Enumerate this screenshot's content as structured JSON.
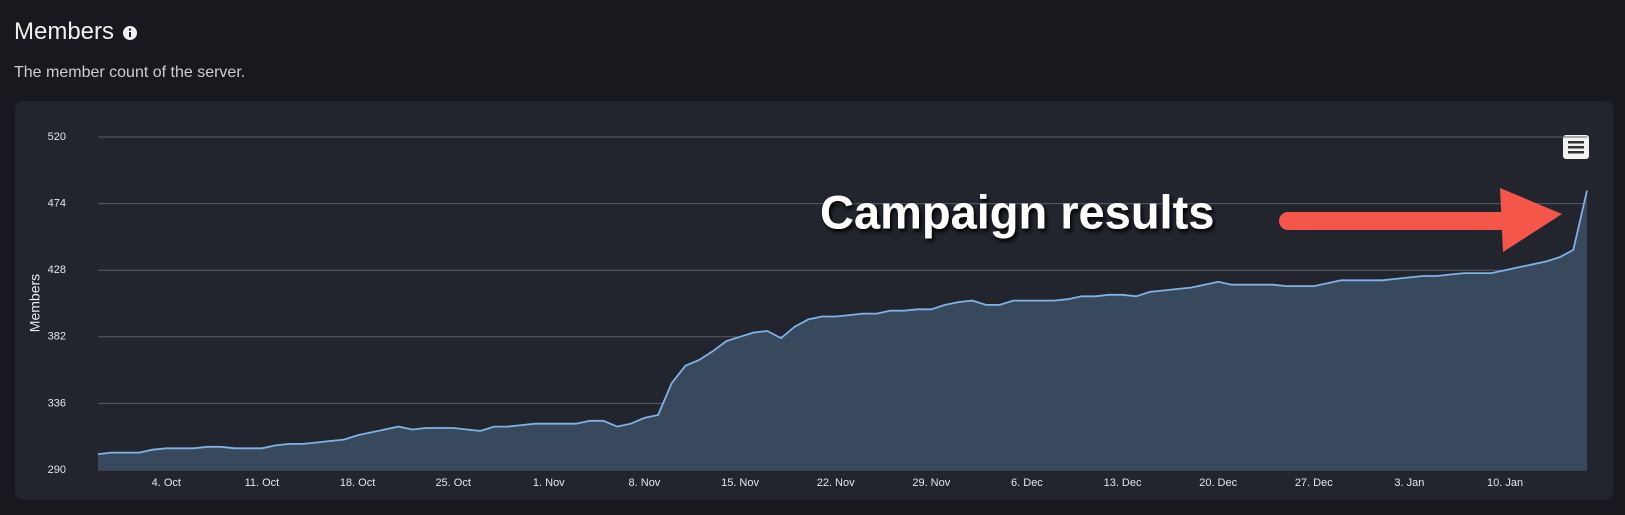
{
  "header": {
    "title": "Members",
    "subtitle": "The member count of the server."
  },
  "chart_data": {
    "type": "area",
    "y_label": "Members",
    "annotation": "Campaign results",
    "categories": [
      null,
      null,
      null,
      null,
      null,
      "4. Oct",
      null,
      null,
      null,
      null,
      null,
      null,
      "11. Oct",
      null,
      null,
      null,
      null,
      null,
      null,
      "18. Oct",
      null,
      null,
      null,
      null,
      null,
      null,
      "25. Oct",
      null,
      null,
      null,
      null,
      null,
      null,
      "1. Nov",
      null,
      null,
      null,
      null,
      null,
      null,
      "8. Nov",
      null,
      null,
      null,
      null,
      null,
      null,
      "15. Nov",
      null,
      null,
      null,
      null,
      null,
      null,
      "22. Nov",
      null,
      null,
      null,
      null,
      null,
      null,
      "29. Nov",
      null,
      null,
      null,
      null,
      null,
      null,
      "6. Dec",
      null,
      null,
      null,
      null,
      null,
      null,
      "13. Dec",
      null,
      null,
      null,
      null,
      null,
      null,
      "20. Dec",
      null,
      null,
      null,
      null,
      null,
      null,
      "27. Dec",
      null,
      null,
      null,
      null,
      null,
      null,
      "3. Jan",
      null,
      null,
      null,
      null,
      null,
      null,
      "10. Jan",
      null,
      null,
      null,
      null,
      null,
      null
    ],
    "values": [
      301,
      302,
      302,
      302,
      304,
      305,
      305,
      305,
      306,
      306,
      305,
      305,
      305,
      307,
      308,
      308,
      309,
      310,
      311,
      314,
      316,
      318,
      320,
      318,
      319,
      319,
      319,
      318,
      317,
      320,
      320,
      321,
      322,
      322,
      322,
      322,
      324,
      324,
      320,
      322,
      326,
      328,
      350,
      362,
      366,
      372,
      379,
      382,
      385,
      386,
      381,
      389,
      394,
      396,
      396,
      397,
      398,
      398,
      400,
      400,
      401,
      401,
      404,
      406,
      407,
      404,
      404,
      407,
      407,
      407,
      407,
      408,
      410,
      410,
      411,
      411,
      410,
      413,
      414,
      415,
      416,
      418,
      420,
      418,
      418,
      418,
      418,
      417,
      417,
      417,
      419,
      421,
      421,
      421,
      421,
      422,
      423,
      424,
      424,
      425,
      426,
      426,
      426,
      428,
      430,
      432,
      434,
      437,
      442,
      483
    ],
    "color": "#7fb2e5",
    "ylim": [
      290,
      520
    ],
    "yticks": [
      290,
      336,
      382,
      428,
      474,
      520
    ],
    "grid": true
  }
}
